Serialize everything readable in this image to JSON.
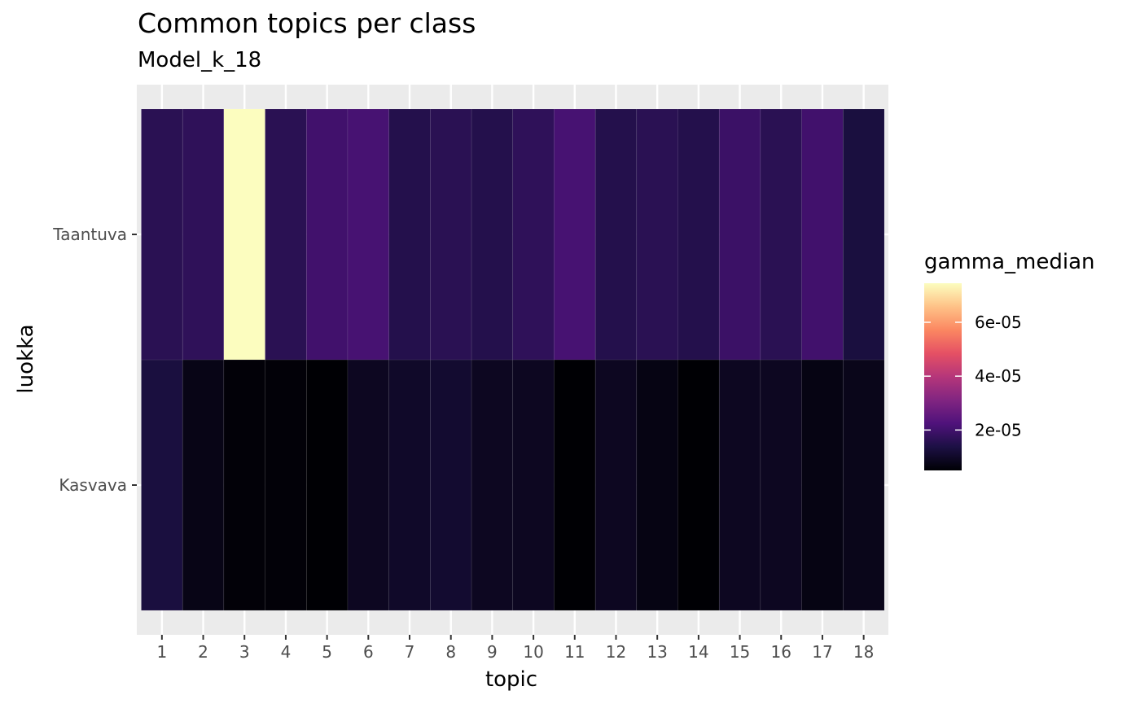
{
  "chart_data": {
    "type": "heatmap",
    "title": "Common topics per class",
    "subtitle": "Model_k_18",
    "xlabel": "topic",
    "ylabel": "luokka",
    "x": [
      "1",
      "2",
      "3",
      "4",
      "5",
      "6",
      "7",
      "8",
      "9",
      "10",
      "11",
      "12",
      "13",
      "14",
      "15",
      "16",
      "17",
      "18"
    ],
    "y": [
      "Kasvava",
      "Taantuva"
    ],
    "values": {
      "Taantuva": [
        1.6e-05,
        1.7e-05,
        7.45e-05,
        1.6e-05,
        2e-05,
        2.1e-05,
        1.5e-05,
        1.6e-05,
        1.5e-05,
        1.7e-05,
        2.1e-05,
        1.5e-05,
        1.6e-05,
        1.5e-05,
        1.9e-05,
        1.6e-05,
        2e-05,
        1.3e-05
      ],
      "Kasvava": [
        1.3e-05,
        7.5e-06,
        5.5e-06,
        5.5e-06,
        5e-06,
        9e-06,
        1e-05,
        1.1e-05,
        9e-06,
        9e-06,
        5e-06,
        9e-06,
        7e-06,
        5e-06,
        9e-06,
        9e-06,
        7e-06,
        8e-06
      ]
    },
    "legend": {
      "title": "gamma_median",
      "position": "right",
      "breaks": [
        2e-05,
        4e-05,
        6e-05
      ],
      "labels": [
        "2e-05",
        "4e-05",
        "6e-05"
      ],
      "range": [
        5e-06,
        7.45e-05
      ]
    },
    "colorscale": [
      "#000004",
      "#1c1044",
      "#4f127b",
      "#812581",
      "#b5367a",
      "#e55064",
      "#fb8761",
      "#fec287",
      "#fcfdbf"
    ],
    "panel_background": "#ebebeb",
    "grid": true
  }
}
